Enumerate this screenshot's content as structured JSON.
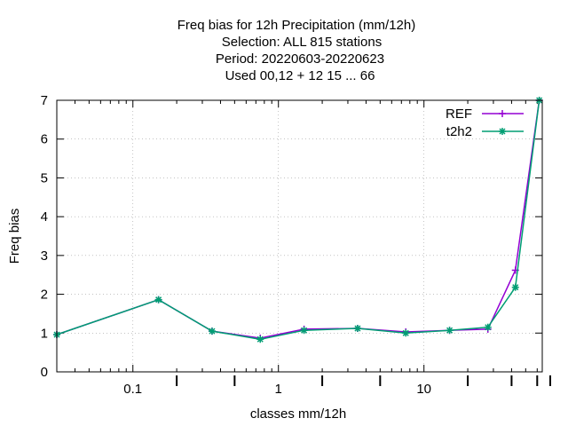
{
  "chart_data": {
    "type": "line",
    "title_lines": [
      "Freq bias  for 12h Precipitation (mm/12h)",
      "Selection: ALL    815 stations",
      "Period: 20220603-20220623",
      "Used  00,12  + 12 15 ... 66"
    ],
    "xlabel": "classes mm/12h",
    "ylabel": "Freq bias",
    "x_scale": "log",
    "xlim": [
      0.03,
      65
    ],
    "ylim": [
      0,
      7
    ],
    "x_ticks": [
      0.1,
      1,
      10
    ],
    "x_tick_labels": [
      "0.1",
      "1",
      "10"
    ],
    "y_ticks": [
      0,
      1,
      2,
      3,
      4,
      5,
      6,
      7
    ],
    "y_tick_labels": [
      "0",
      "1",
      "2",
      "3",
      "4",
      "5",
      "6",
      "7"
    ],
    "class_markers": [
      0.2,
      0.5,
      2,
      5,
      20,
      40,
      60,
      100
    ],
    "grid": true,
    "legend_position": "top-right",
    "x": [
      0.03,
      0.15,
      0.35,
      0.75,
      1.5,
      3.5,
      7.5,
      15,
      27.5,
      42.5,
      62
    ],
    "series": [
      {
        "name": "REF",
        "color": "#9400d3",
        "marker": "plus",
        "values": [
          0.96,
          1.86,
          1.05,
          0.87,
          1.1,
          1.12,
          1.03,
          1.07,
          1.1,
          2.62,
          7.0
        ]
      },
      {
        "name": "t2h2",
        "color": "#009e73",
        "marker": "star",
        "values": [
          0.96,
          1.86,
          1.05,
          0.84,
          1.07,
          1.12,
          1.0,
          1.07,
          1.15,
          2.18,
          7.0
        ]
      }
    ]
  }
}
